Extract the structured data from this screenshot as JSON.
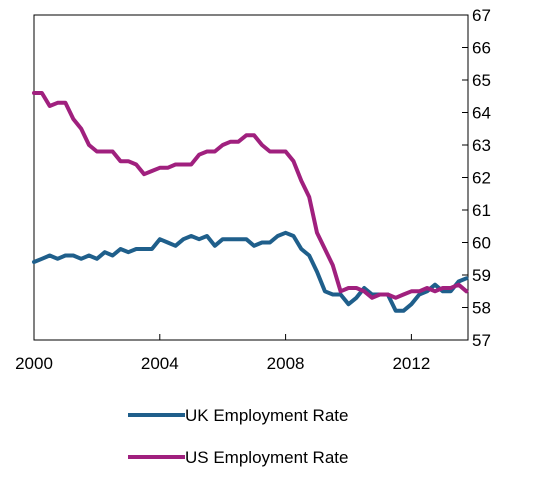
{
  "chart_data": {
    "type": "line",
    "title": "",
    "xlabel": "",
    "ylabel": "",
    "xlim": [
      2000,
      2013.8
    ],
    "ylim": [
      57,
      67
    ],
    "x_ticks": [
      2000,
      2004,
      2008,
      2012
    ],
    "y_ticks": [
      57,
      58,
      59,
      60,
      61,
      62,
      63,
      64,
      65,
      66,
      67
    ],
    "y_axis_side": "right",
    "grid": false,
    "legend_position": "bottom",
    "series": [
      {
        "name": "UK Employment Rate",
        "color": "#1f5f8b",
        "x": [
          2000.0,
          2000.25,
          2000.5,
          2000.75,
          2001.0,
          2001.25,
          2001.5,
          2001.75,
          2002.0,
          2002.25,
          2002.5,
          2002.75,
          2003.0,
          2003.25,
          2003.5,
          2003.75,
          2004.0,
          2004.25,
          2004.5,
          2004.75,
          2005.0,
          2005.25,
          2005.5,
          2005.75,
          2006.0,
          2006.25,
          2006.5,
          2006.75,
          2007.0,
          2007.25,
          2007.5,
          2007.75,
          2008.0,
          2008.25,
          2008.5,
          2008.75,
          2009.0,
          2009.25,
          2009.5,
          2009.75,
          2010.0,
          2010.25,
          2010.5,
          2010.75,
          2011.0,
          2011.25,
          2011.5,
          2011.75,
          2012.0,
          2012.25,
          2012.5,
          2012.75,
          2013.0,
          2013.25,
          2013.5,
          2013.75
        ],
        "values": [
          59.4,
          59.5,
          59.6,
          59.5,
          59.6,
          59.6,
          59.5,
          59.6,
          59.5,
          59.7,
          59.6,
          59.8,
          59.7,
          59.8,
          59.8,
          59.8,
          60.1,
          60.0,
          59.9,
          60.1,
          60.2,
          60.1,
          60.2,
          59.9,
          60.1,
          60.1,
          60.1,
          60.1,
          59.9,
          60.0,
          60.0,
          60.2,
          60.3,
          60.2,
          59.8,
          59.6,
          59.1,
          58.5,
          58.4,
          58.4,
          58.1,
          58.3,
          58.6,
          58.4,
          58.4,
          58.4,
          57.9,
          57.9,
          58.1,
          58.4,
          58.5,
          58.7,
          58.5,
          58.5,
          58.8,
          58.9
        ]
      },
      {
        "name": "US Employment Rate",
        "color": "#a0207e",
        "x": [
          2000.0,
          2000.25,
          2000.5,
          2000.75,
          2001.0,
          2001.25,
          2001.5,
          2001.75,
          2002.0,
          2002.25,
          2002.5,
          2002.75,
          2003.0,
          2003.25,
          2003.5,
          2003.75,
          2004.0,
          2004.25,
          2004.5,
          2004.75,
          2005.0,
          2005.25,
          2005.5,
          2005.75,
          2006.0,
          2006.25,
          2006.5,
          2006.75,
          2007.0,
          2007.25,
          2007.5,
          2007.75,
          2008.0,
          2008.25,
          2008.5,
          2008.75,
          2009.0,
          2009.25,
          2009.5,
          2009.75,
          2010.0,
          2010.25,
          2010.5,
          2010.75,
          2011.0,
          2011.25,
          2011.5,
          2011.75,
          2012.0,
          2012.25,
          2012.5,
          2012.75,
          2013.0,
          2013.25,
          2013.5,
          2013.75
        ],
        "values": [
          64.6,
          64.6,
          64.2,
          64.3,
          64.3,
          63.8,
          63.5,
          63.0,
          62.8,
          62.8,
          62.8,
          62.5,
          62.5,
          62.4,
          62.1,
          62.2,
          62.3,
          62.3,
          62.4,
          62.4,
          62.4,
          62.7,
          62.8,
          62.8,
          63.0,
          63.1,
          63.1,
          63.3,
          63.3,
          63.0,
          62.8,
          62.8,
          62.8,
          62.5,
          61.9,
          61.4,
          60.3,
          59.8,
          59.3,
          58.5,
          58.6,
          58.6,
          58.5,
          58.3,
          58.4,
          58.4,
          58.3,
          58.4,
          58.5,
          58.5,
          58.6,
          58.5,
          58.6,
          58.6,
          58.7,
          58.5
        ]
      }
    ]
  }
}
